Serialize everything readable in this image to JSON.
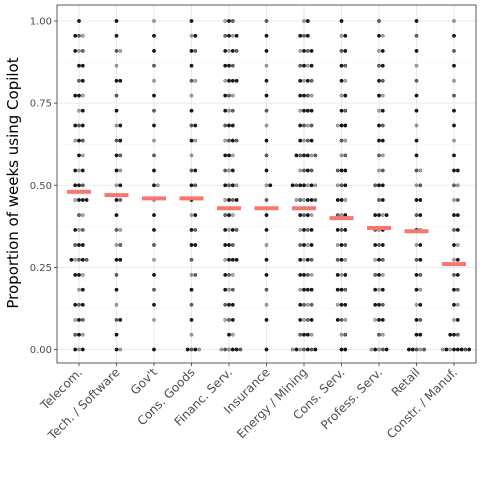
{
  "chart_data": {
    "type": "scatter",
    "ylabel": "Proportion of weeks using Copilot",
    "xlabel": "",
    "ylim": [
      0,
      1
    ],
    "yticks": [
      "0.00",
      "0.25",
      "0.50",
      "0.75",
      "1.00"
    ],
    "categories": [
      "Telecom.",
      "Tech. / Software",
      "Gov't",
      "Cons. Goods",
      "Financ. Serv.",
      "Insurance",
      "Energy / Mining",
      "Cons. Serv.",
      "Profess. Serv.",
      "Retail",
      "Constr. / Manuf."
    ],
    "means": [
      0.48,
      0.47,
      0.46,
      0.46,
      0.43,
      0.43,
      0.43,
      0.4,
      0.37,
      0.36,
      0.26
    ],
    "point_values": [
      0,
      0.045,
      0.09,
      0.136,
      0.182,
      0.227,
      0.273,
      0.318,
      0.364,
      0.409,
      0.455,
      0.5,
      0.545,
      0.591,
      0.636,
      0.682,
      0.727,
      0.773,
      0.818,
      0.864,
      0.909,
      0.955,
      1
    ],
    "point_counts": [
      [
        3,
        3,
        3,
        3,
        2,
        3,
        5,
        3,
        3,
        2,
        4,
        3,
        3,
        2,
        3,
        3,
        2,
        3,
        2,
        2,
        3,
        3,
        1
      ],
      [
        2,
        1,
        2,
        1,
        1,
        1,
        2,
        2,
        2,
        1,
        2,
        2,
        2,
        2,
        2,
        2,
        1,
        1,
        2,
        1,
        2,
        1,
        1
      ],
      [
        1,
        0,
        1,
        1,
        1,
        1,
        1,
        1,
        1,
        1,
        1,
        2,
        1,
        1,
        1,
        1,
        1,
        1,
        1,
        1,
        1,
        1,
        1
      ],
      [
        4,
        1,
        1,
        1,
        1,
        2,
        1,
        2,
        2,
        2,
        1,
        2,
        2,
        1,
        2,
        2,
        1,
        1,
        2,
        1,
        2,
        2,
        1
      ],
      [
        6,
        2,
        3,
        3,
        3,
        3,
        4,
        3,
        4,
        3,
        4,
        4,
        3,
        3,
        4,
        3,
        3,
        3,
        4,
        3,
        4,
        4,
        3
      ],
      [
        1,
        0,
        1,
        1,
        1,
        1,
        1,
        1,
        1,
        1,
        1,
        2,
        1,
        1,
        1,
        1,
        1,
        1,
        1,
        1,
        1,
        1,
        1
      ],
      [
        7,
        4,
        4,
        4,
        4,
        4,
        4,
        4,
        4,
        4,
        6,
        7,
        4,
        6,
        4,
        4,
        4,
        4,
        4,
        4,
        4,
        3,
        2
      ],
      [
        2,
        2,
        3,
        3,
        3,
        3,
        3,
        3,
        3,
        3,
        3,
        3,
        3,
        2,
        2,
        3,
        2,
        2,
        2,
        2,
        2,
        2,
        1
      ],
      [
        5,
        2,
        3,
        3,
        3,
        3,
        3,
        3,
        3,
        4,
        2,
        3,
        2,
        2,
        2,
        2,
        2,
        2,
        2,
        2,
        2,
        2,
        1
      ],
      [
        5,
        2,
        2,
        2,
        2,
        2,
        2,
        2,
        2,
        2,
        2,
        2,
        2,
        1,
        1,
        1,
        1,
        1,
        1,
        1,
        1,
        1,
        1
      ],
      [
        8,
        3,
        2,
        2,
        2,
        2,
        2,
        2,
        2,
        2,
        2,
        2,
        2,
        1,
        1,
        1,
        1,
        1,
        1,
        1,
        1,
        1,
        1
      ]
    ],
    "grid": true,
    "legend": "none",
    "point_color": "#000000",
    "mean_color": "#f8766d"
  }
}
